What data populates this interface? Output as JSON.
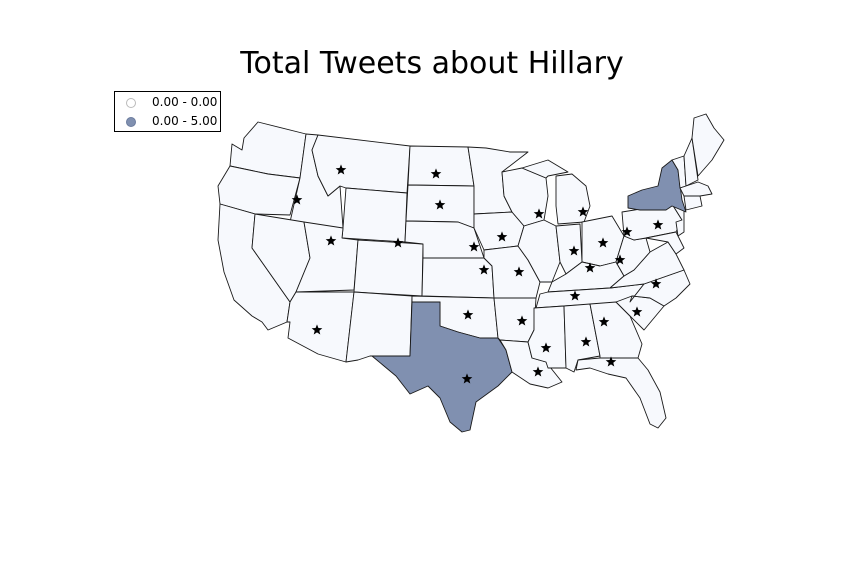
{
  "title": "Total Tweets about Hillary",
  "colors": {
    "no_tweets": "#f7f9fd",
    "has_tweets": "#8090b0",
    "border": "#1a1a1a",
    "marker": "#000000"
  },
  "legend": {
    "items": [
      {
        "label": "0.00 - 0.00",
        "color": "#ffffff",
        "edge": "#bbbbbb"
      },
      {
        "label": "0.00 - 5.00",
        "color": "#8090b0",
        "edge": "#6b7c9e"
      }
    ]
  },
  "map": {
    "marker_icon": "star-icon",
    "highlighted_states": [
      "Texas",
      "New York"
    ]
  }
}
